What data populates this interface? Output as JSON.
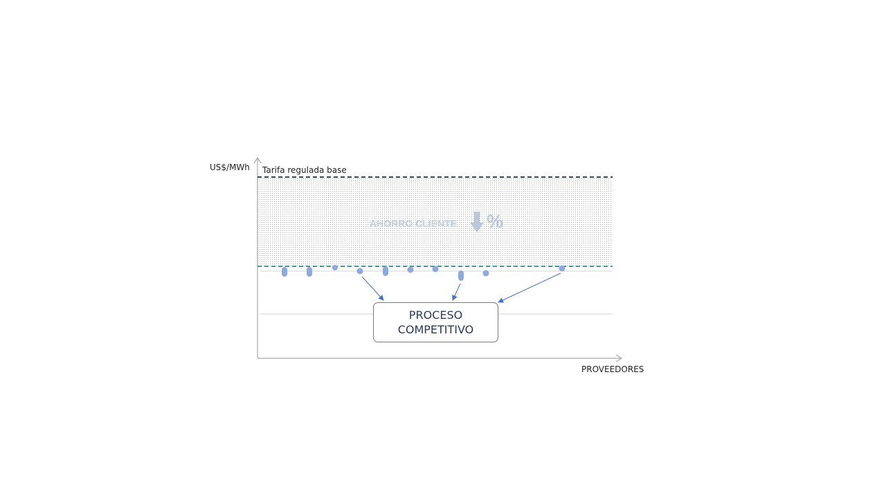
{
  "diagram": {
    "y_axis_label": "US$/MWh",
    "x_axis_label": "PROVEEDORES",
    "reference_line_label": "Tarifa regulada base",
    "savings_label": "AHORRO CLIENTE",
    "savings_symbol": "%",
    "box_line1": "PROCESO",
    "box_line2": "COMPETITIVO",
    "colors": {
      "dots": "#8ea9db",
      "arrows": "#4472c4",
      "tariff_line": "#1f2a44",
      "competitive_line": "#2e8b8b",
      "hatch": "#9a9a9a"
    }
  }
}
